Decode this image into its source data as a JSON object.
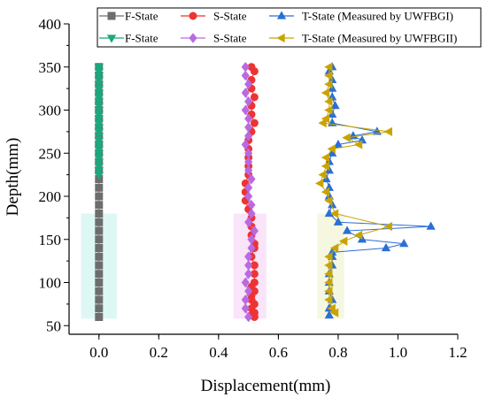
{
  "chart_data": {
    "type": "scatter",
    "xlabel": "Displacement(mm)",
    "ylabel": "Depth(mm)",
    "xlim": [
      -0.1,
      1.2
    ],
    "ylim": [
      40,
      400
    ],
    "xticks": [
      "0.0",
      "0.2",
      "0.4",
      "0.6",
      "0.8",
      "1.0",
      "1.2"
    ],
    "yticks": [
      "50",
      "100",
      "150",
      "200",
      "250",
      "300",
      "350",
      "400"
    ],
    "legend_position": "top-right",
    "shaded_bands": [
      {
        "x": [
          -0.06,
          0.06
        ],
        "y": [
          180,
          58
        ],
        "color": "#c7f2ee",
        "opacity": 0.6
      },
      {
        "x": [
          0.45,
          0.56
        ],
        "y": [
          180,
          58
        ],
        "color": "#f6d2f6",
        "opacity": 0.6
      },
      {
        "x": [
          0.73,
          0.82
        ],
        "y": [
          180,
          58
        ],
        "color": "#eff2cc",
        "opacity": 0.6
      }
    ],
    "series": [
      {
        "name": "F-State",
        "color": "#6d6d6d",
        "marker": "square",
        "x": [
          0.0,
          0.0,
          0.0,
          0.0,
          0.0,
          0.0,
          0.0,
          0.0,
          0.0,
          0.0,
          0.0,
          0.0,
          0.0,
          0.0,
          0.0,
          0.0,
          0.0,
          0.0,
          0.0,
          0.0,
          0.0,
          0.0,
          0.0,
          0.0,
          0.0,
          0.0,
          0.0,
          0.0,
          0.0,
          0.0
        ],
        "y": [
          350,
          340,
          330,
          320,
          310,
          300,
          290,
          280,
          270,
          260,
          250,
          240,
          230,
          220,
          210,
          200,
          190,
          180,
          170,
          160,
          150,
          140,
          130,
          120,
          110,
          100,
          90,
          80,
          70,
          60
        ]
      },
      {
        "name": "S-State",
        "color": "#ee3333",
        "marker": "circle",
        "x": [
          0.51,
          0.52,
          0.51,
          0.51,
          0.52,
          0.51,
          0.51,
          0.52,
          0.51,
          0.5,
          0.5,
          0.5,
          0.5,
          0.5,
          0.49,
          0.49,
          0.49,
          0.5,
          0.51,
          0.51,
          0.51,
          0.52,
          0.52,
          0.51,
          0.52,
          0.52,
          0.52,
          0.51,
          0.52,
          0.51,
          0.51,
          0.52,
          0.51,
          0.52,
          0.51,
          0.52
        ],
        "y": [
          350,
          345,
          335,
          325,
          315,
          305,
          295,
          285,
          275,
          265,
          255,
          245,
          235,
          225,
          215,
          205,
          195,
          185,
          175,
          165,
          155,
          145,
          140,
          130,
          120,
          110,
          100,
          95,
          90,
          85,
          80,
          75,
          70,
          65,
          62,
          60
        ]
      },
      {
        "name": "T-State (Measured by UWFBGI)",
        "color": "#2a6fd6",
        "marker": "triangle-up",
        "x": [
          0.78,
          0.77,
          0.78,
          0.78,
          0.78,
          0.79,
          0.78,
          0.78,
          0.93,
          0.85,
          0.88,
          0.8,
          0.78,
          0.77,
          0.77,
          0.76,
          0.77,
          0.77,
          0.78,
          0.77,
          0.8,
          1.11,
          0.83,
          0.88,
          1.02,
          0.96,
          0.78,
          0.78,
          0.78,
          0.77,
          0.77,
          0.77,
          0.78,
          0.77,
          0.77
        ],
        "y": [
          350,
          345,
          335,
          325,
          315,
          305,
          295,
          285,
          275,
          270,
          265,
          260,
          250,
          240,
          230,
          220,
          210,
          200,
          190,
          180,
          170,
          165,
          160,
          150,
          145,
          140,
          135,
          130,
          120,
          110,
          100,
          90,
          80,
          70,
          62
        ]
      },
      {
        "name": "F-State",
        "color": "#1aa87d",
        "marker": "triangle-down",
        "x": [
          0.0,
          0.0,
          0.0,
          0.0,
          0.0,
          0.0,
          0.0,
          0.0,
          0.0,
          0.0,
          0.0,
          0.0,
          0.0,
          0.0,
          0.0,
          0.0,
          0.0,
          0.0,
          0.0,
          0.0,
          0.0,
          0.0,
          0.0,
          0.0,
          0.0,
          0.0
        ],
        "y": [
          350,
          345,
          340,
          335,
          330,
          325,
          320,
          315,
          310,
          305,
          300,
          295,
          290,
          285,
          280,
          275,
          270,
          265,
          260,
          255,
          250,
          245,
          240,
          235,
          230,
          225
        ]
      },
      {
        "name": "S-State",
        "color": "#b96ae0",
        "marker": "diamond",
        "x": [
          0.49,
          0.49,
          0.5,
          0.49,
          0.5,
          0.49,
          0.5,
          0.5,
          0.5,
          0.49,
          0.5,
          0.5,
          0.5,
          0.51,
          0.5,
          0.5,
          0.51,
          0.51,
          0.5,
          0.52,
          0.51,
          0.51,
          0.5,
          0.5,
          0.5,
          0.49,
          0.5,
          0.49,
          0.49,
          0.5
        ],
        "y": [
          350,
          340,
          330,
          320,
          310,
          300,
          290,
          280,
          270,
          260,
          250,
          240,
          230,
          220,
          210,
          200,
          190,
          180,
          170,
          160,
          150,
          140,
          130,
          120,
          110,
          100,
          90,
          80,
          70,
          60
        ]
      },
      {
        "name": "T-State (Measured by UWFBGII)",
        "color": "#c9a400",
        "marker": "triangle-left",
        "x": [
          0.77,
          0.77,
          0.77,
          0.76,
          0.77,
          0.77,
          0.76,
          0.75,
          0.97,
          0.83,
          0.87,
          0.78,
          0.76,
          0.76,
          0.75,
          0.74,
          0.76,
          0.77,
          0.79,
          0.97,
          0.87,
          0.82,
          0.79,
          0.77,
          0.77,
          0.77,
          0.77,
          0.77,
          0.77,
          0.78,
          0.79
        ],
        "y": [
          350,
          340,
          330,
          320,
          310,
          300,
          290,
          285,
          275,
          268,
          260,
          255,
          245,
          235,
          225,
          215,
          205,
          195,
          180,
          165,
          155,
          148,
          140,
          130,
          120,
          110,
          100,
          90,
          80,
          70,
          65
        ]
      }
    ]
  }
}
